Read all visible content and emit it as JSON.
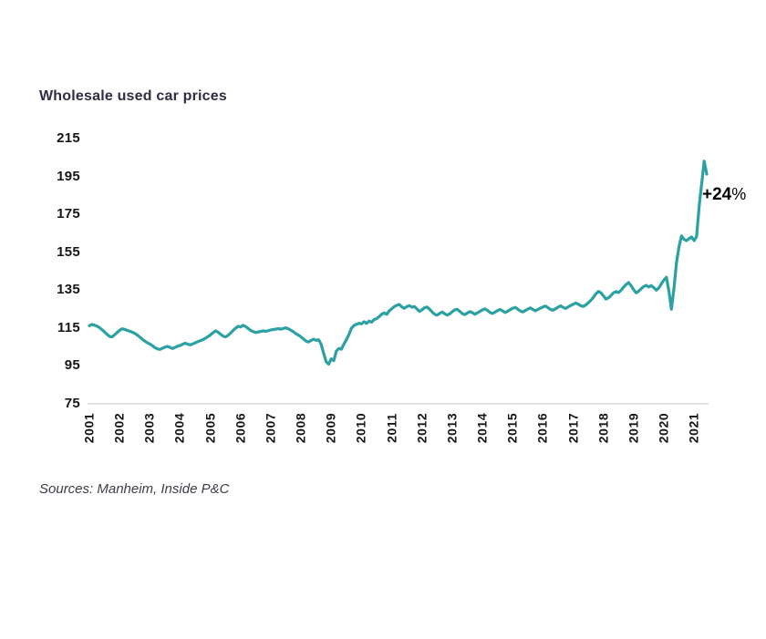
{
  "title": "Wholesale used car prices",
  "annotation": {
    "value": "+24",
    "suffix": "%"
  },
  "source_note": "Sources: Manheim, Inside P&C",
  "colors": {
    "line": "#2ba1a3",
    "title": "#2d2d44",
    "axis_line": "#d8d8d8",
    "tick_label": "#161616",
    "annotation": "#000000",
    "source": "#3d3d47"
  },
  "chart_data": {
    "type": "line",
    "title": "Wholesale used car prices",
    "frequency": "monthly",
    "x_start": "2001-01",
    "x_end": "2021-06",
    "x_ticks": [
      "2001",
      "2002",
      "2003",
      "2004",
      "2005",
      "2006",
      "2007",
      "2008",
      "2009",
      "2010",
      "2011",
      "2012",
      "2013",
      "2014",
      "2015",
      "2016",
      "2017",
      "2018",
      "2019",
      "2020",
      "2021"
    ],
    "y_ticks": [
      215,
      195,
      175,
      155,
      135,
      115,
      95,
      75
    ],
    "ylim": [
      75,
      215
    ],
    "grid": false,
    "legend": "none",
    "annotation": "+24%",
    "values": [
      116.2,
      116.9,
      116.5,
      116.0,
      115.2,
      114.1,
      112.9,
      111.7,
      110.6,
      110.3,
      111.4,
      112.6,
      113.8,
      114.6,
      114.3,
      113.8,
      113.3,
      112.8,
      112.2,
      111.3,
      110.2,
      109.1,
      108.1,
      107.2,
      106.6,
      105.7,
      104.7,
      104.0,
      103.7,
      104.3,
      104.9,
      105.3,
      104.8,
      104.2,
      104.8,
      105.4,
      105.8,
      106.4,
      107.0,
      106.5,
      106.1,
      106.6,
      107.2,
      107.8,
      108.3,
      108.8,
      109.6,
      110.4,
      111.3,
      112.5,
      113.5,
      112.9,
      111.8,
      110.8,
      110.3,
      111.1,
      112.3,
      113.7,
      114.9,
      115.9,
      115.6,
      116.4,
      115.8,
      114.8,
      113.8,
      113.1,
      112.6,
      112.9,
      113.2,
      113.5,
      113.3,
      113.6,
      114.0,
      114.2,
      114.4,
      114.7,
      114.4,
      114.8,
      115.1,
      114.6,
      113.8,
      113.0,
      112.0,
      111.2,
      110.3,
      109.2,
      108.1,
      107.6,
      108.5,
      109.1,
      108.5,
      108.8,
      106.3,
      101.5,
      97.2,
      96.0,
      98.7,
      97.8,
      102.8,
      104.2,
      103.8,
      106.5,
      108.8,
      111.5,
      114.9,
      116.3,
      117.0,
      117.5,
      117.2,
      118.3,
      117.5,
      118.7,
      118.1,
      119.4,
      120.0,
      121.0,
      122.3,
      123.0,
      122.2,
      124.0,
      125.2,
      126.3,
      127.0,
      127.4,
      126.2,
      125.4,
      126.3,
      126.8,
      126.0,
      126.4,
      125.1,
      123.8,
      124.6,
      125.7,
      126.1,
      125.0,
      123.5,
      122.3,
      121.8,
      122.7,
      123.5,
      122.6,
      121.8,
      122.5,
      123.6,
      124.6,
      124.9,
      123.8,
      122.6,
      122.1,
      122.9,
      123.7,
      123.1,
      122.3,
      123.0,
      123.8,
      124.6,
      125.1,
      124.3,
      123.2,
      122.7,
      123.4,
      124.2,
      124.8,
      124.0,
      123.2,
      123.9,
      124.7,
      125.4,
      125.9,
      125.0,
      124.0,
      123.5,
      124.2,
      125.0,
      125.6,
      124.8,
      124.1,
      124.8,
      125.5,
      126.1,
      126.6,
      125.7,
      124.8,
      124.4,
      125.2,
      126.0,
      126.7,
      125.9,
      125.3,
      126.1,
      126.9,
      127.5,
      128.2,
      127.6,
      126.8,
      126.4,
      127.2,
      128.3,
      129.6,
      131.2,
      133.0,
      134.3,
      133.6,
      132.0,
      130.3,
      130.9,
      132.2,
      133.6,
      134.2,
      133.7,
      134.9,
      136.6,
      138.0,
      139.0,
      137.3,
      135.2,
      133.6,
      134.4,
      135.8,
      136.9,
      137.5,
      136.7,
      137.4,
      136.3,
      135.0,
      136.2,
      138.3,
      140.3,
      141.8,
      134.2,
      124.9,
      136.1,
      149.3,
      158.0,
      163.6,
      161.8,
      161.1,
      162.2,
      163.1,
      161.1,
      163.4,
      179.2,
      191.4,
      203.1,
      196.2
    ]
  }
}
